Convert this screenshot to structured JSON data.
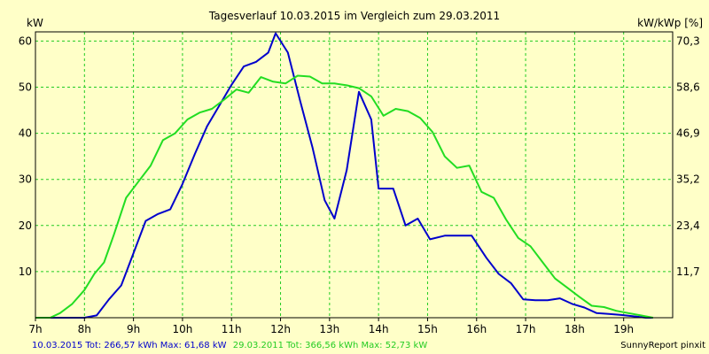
{
  "chart_data": {
    "type": "line",
    "title": "Tagesverlauf 10.03.2015 im Vergleich zum 29.03.2011",
    "ylabel_left": "kW",
    "ylabel_right": "kW/kWp [%]",
    "xlim": [
      7,
      20
    ],
    "ylim": [
      0,
      62
    ],
    "x_ticks": [
      {
        "x": 7,
        "label": "7h"
      },
      {
        "x": 8,
        "label": "8h"
      },
      {
        "x": 9,
        "label": "9h"
      },
      {
        "x": 10,
        "label": "10h"
      },
      {
        "x": 11,
        "label": "11h"
      },
      {
        "x": 12,
        "label": "12h"
      },
      {
        "x": 13,
        "label": "13h"
      },
      {
        "x": 14,
        "label": "14h"
      },
      {
        "x": 15,
        "label": "15h"
      },
      {
        "x": 16,
        "label": "16h"
      },
      {
        "x": 17,
        "label": "17h"
      },
      {
        "x": 18,
        "label": "18h"
      },
      {
        "x": 19,
        "label": "19h"
      }
    ],
    "y_ticks_left": [
      {
        "y": 10,
        "label": "10"
      },
      {
        "y": 20,
        "label": "20"
      },
      {
        "y": 30,
        "label": "30"
      },
      {
        "y": 40,
        "label": "40"
      },
      {
        "y": 50,
        "label": "50"
      },
      {
        "y": 60,
        "label": "60"
      }
    ],
    "y_ticks_right": [
      {
        "y": 10,
        "label": "11,7"
      },
      {
        "y": 20,
        "label": "23,4"
      },
      {
        "y": 30,
        "label": "35,2"
      },
      {
        "y": 40,
        "label": "46,9"
      },
      {
        "y": 50,
        "label": "58,6"
      },
      {
        "y": 60,
        "label": "70,3"
      }
    ],
    "grid": true,
    "series": [
      {
        "name": "10.03.2015",
        "color": "#0000cc",
        "points": [
          [
            7.0,
            0
          ],
          [
            7.25,
            0
          ],
          [
            7.5,
            0
          ],
          [
            7.75,
            0
          ],
          [
            8.0,
            0
          ],
          [
            8.25,
            0.5
          ],
          [
            8.5,
            4
          ],
          [
            8.75,
            7
          ],
          [
            9.0,
            14
          ],
          [
            9.25,
            21
          ],
          [
            9.5,
            22.5
          ],
          [
            9.75,
            23.5
          ],
          [
            10.0,
            29
          ],
          [
            10.25,
            35.5
          ],
          [
            10.5,
            41.5
          ],
          [
            10.75,
            46
          ],
          [
            11.0,
            50.5
          ],
          [
            11.25,
            54.5
          ],
          [
            11.5,
            55.5
          ],
          [
            11.75,
            57.5
          ],
          [
            11.9,
            61.7
          ],
          [
            12.15,
            57.5
          ],
          [
            12.4,
            47
          ],
          [
            12.65,
            37
          ],
          [
            12.9,
            25.5
          ],
          [
            13.1,
            21.5
          ],
          [
            13.35,
            32
          ],
          [
            13.6,
            49
          ],
          [
            13.85,
            43
          ],
          [
            14.0,
            28
          ],
          [
            14.3,
            28
          ],
          [
            14.55,
            20
          ],
          [
            14.8,
            21.5
          ],
          [
            15.05,
            17
          ],
          [
            15.35,
            17.8
          ],
          [
            15.6,
            17.8
          ],
          [
            15.9,
            17.8
          ],
          [
            16.2,
            13
          ],
          [
            16.45,
            9.5
          ],
          [
            16.7,
            7.5
          ],
          [
            16.95,
            4
          ],
          [
            17.2,
            3.8
          ],
          [
            17.45,
            3.8
          ],
          [
            17.7,
            4.2
          ],
          [
            17.95,
            3
          ],
          [
            18.2,
            2.2
          ],
          [
            18.45,
            1
          ],
          [
            18.7,
            0.8
          ],
          [
            18.95,
            0.6
          ],
          [
            19.2,
            0.3
          ],
          [
            19.45,
            0
          ],
          [
            19.6,
            0
          ]
        ]
      },
      {
        "name": "29.03.2011",
        "color": "#22dd22",
        "points": [
          [
            7.0,
            0
          ],
          [
            7.3,
            0
          ],
          [
            7.5,
            1
          ],
          [
            7.75,
            3
          ],
          [
            8.0,
            6
          ],
          [
            8.2,
            9.5
          ],
          [
            8.4,
            12
          ],
          [
            8.6,
            18
          ],
          [
            8.85,
            26
          ],
          [
            9.1,
            29.5
          ],
          [
            9.35,
            33
          ],
          [
            9.6,
            38.5
          ],
          [
            9.85,
            40
          ],
          [
            10.1,
            43
          ],
          [
            10.35,
            44.5
          ],
          [
            10.6,
            45.3
          ],
          [
            10.85,
            47.3
          ],
          [
            11.1,
            49.5
          ],
          [
            11.35,
            48.8
          ],
          [
            11.6,
            52.2
          ],
          [
            11.85,
            51.2
          ],
          [
            12.1,
            50.8
          ],
          [
            12.35,
            52.5
          ],
          [
            12.6,
            52.3
          ],
          [
            12.85,
            50.8
          ],
          [
            13.1,
            50.8
          ],
          [
            13.35,
            50.4
          ],
          [
            13.6,
            49.8
          ],
          [
            13.85,
            48
          ],
          [
            14.1,
            43.8
          ],
          [
            14.35,
            45.3
          ],
          [
            14.6,
            44.8
          ],
          [
            14.85,
            43.3
          ],
          [
            15.1,
            40.3
          ],
          [
            15.35,
            35
          ],
          [
            15.6,
            32.5
          ],
          [
            15.85,
            33
          ],
          [
            16.1,
            27.3
          ],
          [
            16.35,
            26
          ],
          [
            16.6,
            21.3
          ],
          [
            16.85,
            17.3
          ],
          [
            17.1,
            15.5
          ],
          [
            17.35,
            12
          ],
          [
            17.6,
            8.5
          ],
          [
            17.85,
            6.5
          ],
          [
            18.1,
            4.5
          ],
          [
            18.35,
            2.6
          ],
          [
            18.6,
            2.3
          ],
          [
            18.85,
            1.5
          ],
          [
            19.1,
            1
          ],
          [
            19.35,
            0.5
          ],
          [
            19.6,
            0
          ]
        ]
      }
    ],
    "footer": {
      "series1_text": "10.03.2015 Tot: 266,57 kWh Max: 61,68 kW",
      "series2_text": "29.03.2011 Tot: 366,56 kWh Max: 52,73 kW",
      "credit": "SunnyReport pinxit"
    }
  }
}
